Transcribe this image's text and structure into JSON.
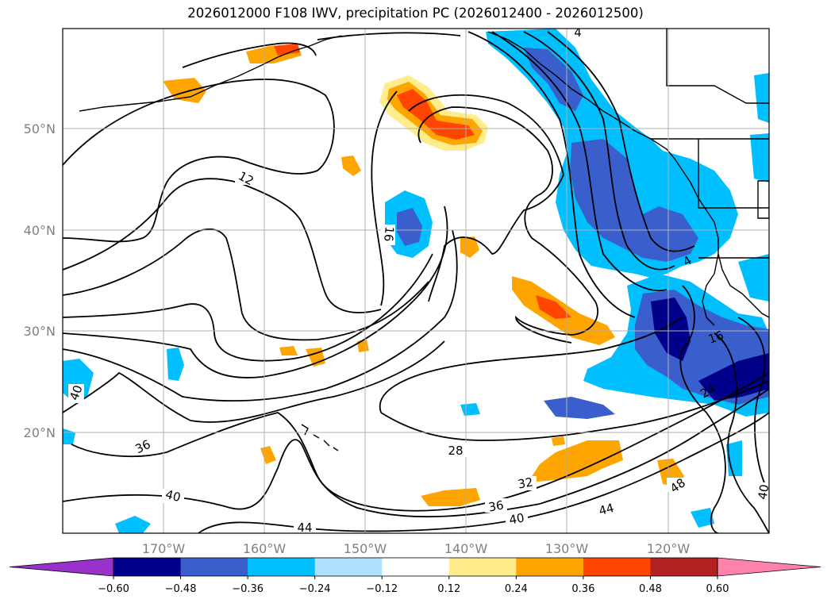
{
  "title": "2026012000 F108 IWV, precipitation PC (2026012400 - 2026012500)",
  "lon_labels": [
    "170°W",
    "160°W",
    "150°W",
    "140°W",
    "130°W",
    "120°W"
  ],
  "lat_labels": [
    "50°N",
    "40°N",
    "30°N",
    "20°N"
  ],
  "colorbar": {
    "colors": [
      "#9932cc",
      "#00008b",
      "#3a5fcd",
      "#00bfff",
      "#b0e2ff",
      "#ffffff",
      "#ffec8b",
      "#ffa500",
      "#ff4500",
      "#b22222",
      "#ff82ab"
    ],
    "tick_labels": [
      "−0.60",
      "−0.48",
      "−0.36",
      "−0.24",
      "−0.12",
      "0.12",
      "0.24",
      "0.36",
      "0.48",
      "0.60"
    ]
  },
  "contour_labels": [
    {
      "text": "12"
    },
    {
      "text": "16"
    },
    {
      "text": "40"
    },
    {
      "text": "36"
    },
    {
      "text": "40"
    },
    {
      "text": "44"
    },
    {
      "text": "28"
    },
    {
      "text": "32"
    },
    {
      "text": "36"
    },
    {
      "text": "40"
    },
    {
      "text": "44"
    },
    {
      "text": "48"
    },
    {
      "text": "40"
    },
    {
      "text": "24"
    },
    {
      "text": "16"
    },
    {
      "text": "4"
    },
    {
      "text": "4"
    }
  ]
}
